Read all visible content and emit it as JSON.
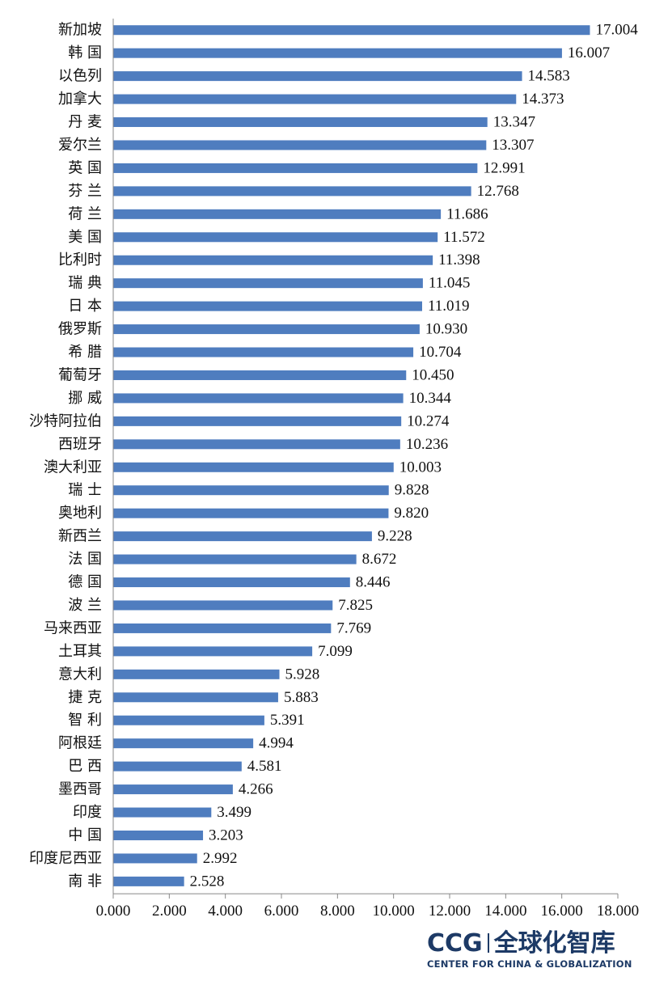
{
  "chart_data": {
    "type": "bar",
    "orientation": "horizontal",
    "categories": [
      "新加坡",
      "韩 国",
      "以色列",
      "加拿大",
      "丹 麦",
      "爱尔兰",
      "英 国",
      "芬 兰",
      "荷 兰",
      "美 国",
      "比利时",
      "瑞 典",
      "日 本",
      "俄罗斯",
      "希 腊",
      "葡萄牙",
      "挪 威",
      "沙特阿拉伯",
      "西班牙",
      "澳大利亚",
      "瑞 士",
      "奥地利",
      "新西兰",
      "法 国",
      "德 国",
      "波 兰",
      "马来西亚",
      "土耳其",
      "意大利",
      "捷 克",
      "智 利",
      "阿根廷",
      "巴 西",
      "墨西哥",
      "印度",
      "中 国",
      "印度尼西亚",
      "南 非"
    ],
    "values": [
      17.004,
      16.007,
      14.583,
      14.373,
      13.347,
      13.307,
      12.991,
      12.768,
      11.686,
      11.572,
      11.398,
      11.045,
      11.019,
      10.93,
      10.704,
      10.45,
      10.344,
      10.274,
      10.236,
      10.003,
      9.828,
      9.82,
      9.228,
      8.672,
      8.446,
      7.825,
      7.769,
      7.099,
      5.928,
      5.883,
      5.391,
      4.994,
      4.581,
      4.266,
      3.499,
      3.203,
      2.992,
      2.528
    ],
    "value_labels": [
      "17.004",
      "16.007",
      "14.583",
      "14.373",
      "13.347",
      "13.307",
      "12.991",
      "12.768",
      "11.686",
      "11.572",
      "11.398",
      "11.045",
      "11.019",
      "10.930",
      "10.704",
      "10.450",
      "10.344",
      "10.274",
      "10.236",
      "10.003",
      "9.828",
      "9.820",
      "9.228",
      "8.672",
      "8.446",
      "7.825",
      "7.769",
      "7.099",
      "5.928",
      "5.883",
      "5.391",
      "4.994",
      "4.581",
      "4.266",
      "3.499",
      "3.203",
      "2.992",
      "2.528"
    ],
    "xlim": [
      0,
      18
    ],
    "x_ticks": [
      0,
      2,
      4,
      6,
      8,
      10,
      12,
      14,
      16,
      18
    ],
    "x_tick_labels": [
      "0.000",
      "2.000",
      "4.000",
      "6.000",
      "8.000",
      "10.000",
      "12.000",
      "14.000",
      "16.000",
      "18.000"
    ],
    "bar_color": "#4f7dbf",
    "grid": false,
    "legend": "none"
  },
  "logo": {
    "mark": "CCG",
    "chinese": "全球化智库",
    "english": "CENTER FOR CHINA & GLOBALIZATION",
    "color": "#1d3a66"
  }
}
